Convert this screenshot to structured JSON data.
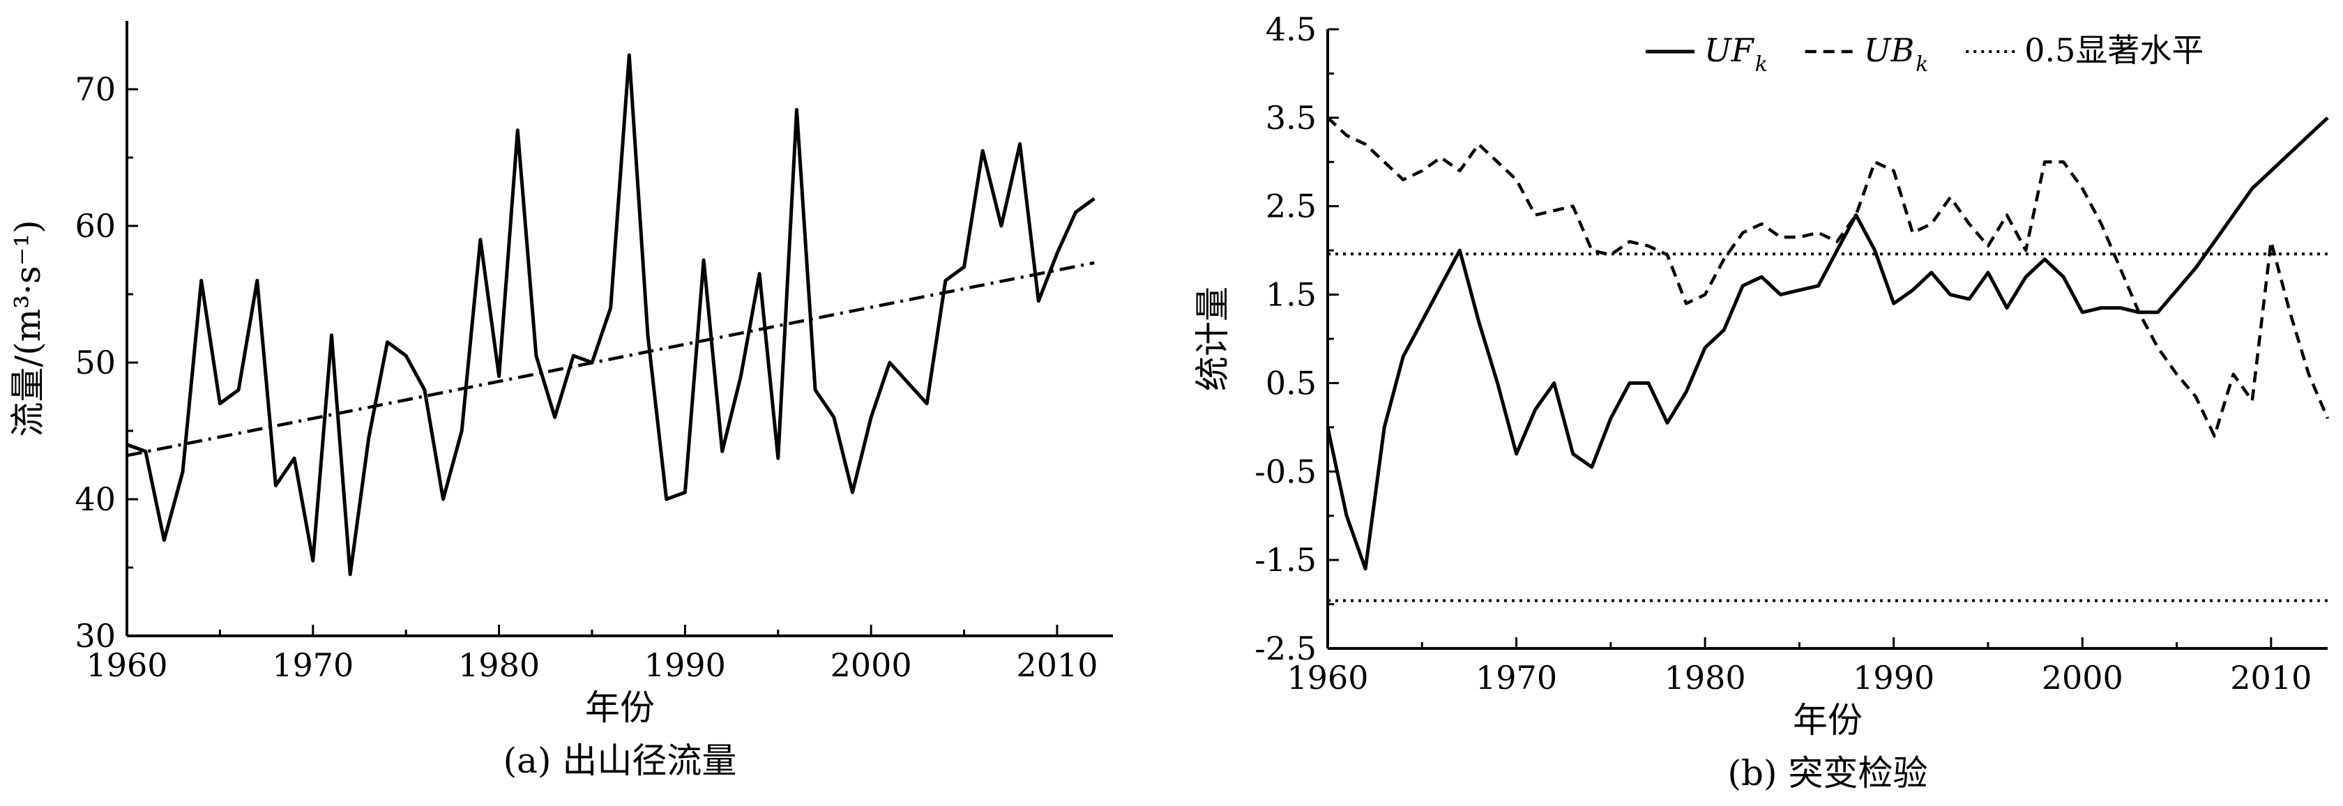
{
  "chart_data": [
    {
      "type": "line",
      "caption": "(a) 出山径流量",
      "xlabel": "年份",
      "ylabel": "流量/(m³·s⁻¹)",
      "xlim": [
        1960,
        2013
      ],
      "ylim": [
        30,
        75
      ],
      "xticks": [
        1960,
        1970,
        1980,
        1990,
        2000,
        2010
      ],
      "yticks": [
        30,
        40,
        50,
        60,
        70
      ],
      "grid": false,
      "series": [
        {
          "key": "flow",
          "style": "solid",
          "points": [
            [
              1960,
              44
            ],
            [
              1961,
              43.5
            ],
            [
              1962,
              37
            ],
            [
              1963,
              42
            ],
            [
              1964,
              56
            ],
            [
              1965,
              47
            ],
            [
              1966,
              48
            ],
            [
              1967,
              56
            ],
            [
              1968,
              41
            ],
            [
              1969,
              43
            ],
            [
              1970,
              35.5
            ],
            [
              1971,
              52
            ],
            [
              1972,
              34.5
            ],
            [
              1973,
              44.5
            ],
            [
              1974,
              51.5
            ],
            [
              1975,
              50.5
            ],
            [
              1976,
              48
            ],
            [
              1977,
              40
            ],
            [
              1978,
              45
            ],
            [
              1979,
              59
            ],
            [
              1980,
              49
            ],
            [
              1981,
              67
            ],
            [
              1982,
              50.5
            ],
            [
              1983,
              46
            ],
            [
              1984,
              50.5
            ],
            [
              1985,
              50
            ],
            [
              1986,
              54
            ],
            [
              1987,
              72.5
            ],
            [
              1988,
              52
            ],
            [
              1989,
              40
            ],
            [
              1990,
              40.5
            ],
            [
              1991,
              57.5
            ],
            [
              1992,
              43.5
            ],
            [
              1993,
              49
            ],
            [
              1994,
              56.5
            ],
            [
              1995,
              43
            ],
            [
              1996,
              68.5
            ],
            [
              1997,
              48
            ],
            [
              1998,
              46
            ],
            [
              1999,
              40.5
            ],
            [
              2000,
              46
            ],
            [
              2001,
              50
            ],
            [
              2002,
              48.5
            ],
            [
              2003,
              47
            ],
            [
              2004,
              56
            ],
            [
              2005,
              57
            ],
            [
              2006,
              65.5
            ],
            [
              2007,
              60
            ],
            [
              2008,
              66
            ],
            [
              2009,
              54.5
            ],
            [
              2010,
              58
            ],
            [
              2011,
              61
            ],
            [
              2012,
              62
            ]
          ]
        },
        {
          "key": "trend",
          "style": "dashdot",
          "points": [
            [
              1960,
              43.2
            ],
            [
              2012,
              57.3
            ]
          ]
        }
      ]
    },
    {
      "type": "line",
      "caption": "(b) 突变检验",
      "xlabel": "年份",
      "ylabel": "统计量",
      "xlim": [
        1960,
        2013
      ],
      "ylim": [
        -2.5,
        4.5
      ],
      "xticks": [
        1960,
        1970,
        1980,
        1990,
        2000,
        2010
      ],
      "yticks": [
        -2.5,
        -1.5,
        -0.5,
        0.5,
        1.5,
        2.5,
        3.5,
        4.5
      ],
      "ytick_labels": [
        "-2.5",
        "-1.5",
        "-0.5",
        "0.5",
        "1.5",
        "2.5",
        "3.5",
        "4.5"
      ],
      "grid": false,
      "legend_position": "top-right",
      "legend": [
        {
          "main": "UF",
          "sub": "k",
          "style": "solid"
        },
        {
          "main": "UB",
          "sub": "k",
          "style": "dashed"
        },
        {
          "main": "0.5显著水平",
          "sub": "",
          "style": "dotted"
        }
      ],
      "series": [
        {
          "key": "UF",
          "style": "solid",
          "points": [
            [
              1960,
              0
            ],
            [
              1961,
              -1
            ],
            [
              1962,
              -1.6
            ],
            [
              1963,
              0
            ],
            [
              1964,
              0.8
            ],
            [
              1965,
              1.2
            ],
            [
              1966,
              1.6
            ],
            [
              1967,
              2.0
            ],
            [
              1968,
              1.2
            ],
            [
              1969,
              0.5
            ],
            [
              1970,
              -0.3
            ],
            [
              1971,
              0.2
            ],
            [
              1972,
              0.5
            ],
            [
              1973,
              -0.3
            ],
            [
              1974,
              -0.45
            ],
            [
              1975,
              0.1
            ],
            [
              1976,
              0.5
            ],
            [
              1977,
              0.5
            ],
            [
              1978,
              0.05
            ],
            [
              1979,
              0.4
            ],
            [
              1980,
              0.9
            ],
            [
              1981,
              1.1
            ],
            [
              1982,
              1.6
            ],
            [
              1983,
              1.7
            ],
            [
              1984,
              1.5
            ],
            [
              1985,
              1.55
            ],
            [
              1986,
              1.6
            ],
            [
              1987,
              2.0
            ],
            [
              1988,
              2.4
            ],
            [
              1989,
              2.0
            ],
            [
              1990,
              1.4
            ],
            [
              1991,
              1.55
            ],
            [
              1992,
              1.75
            ],
            [
              1993,
              1.5
            ],
            [
              1994,
              1.45
            ],
            [
              1995,
              1.75
            ],
            [
              1996,
              1.35
            ],
            [
              1997,
              1.7
            ],
            [
              1998,
              1.9
            ],
            [
              1999,
              1.7
            ],
            [
              2000,
              1.3
            ],
            [
              2001,
              1.35
            ],
            [
              2002,
              1.35
            ],
            [
              2003,
              1.3
            ],
            [
              2004,
              1.3
            ],
            [
              2005,
              1.55
            ],
            [
              2006,
              1.8
            ],
            [
              2007,
              2.1
            ],
            [
              2008,
              2.4
            ],
            [
              2009,
              2.7
            ],
            [
              2010,
              2.9
            ],
            [
              2011,
              3.1
            ],
            [
              2012,
              3.3
            ],
            [
              2013,
              3.5
            ]
          ]
        },
        {
          "key": "UB",
          "style": "dashed",
          "points": [
            [
              1960,
              3.5
            ],
            [
              1961,
              3.3
            ],
            [
              1962,
              3.2
            ],
            [
              1963,
              3.0
            ],
            [
              1964,
              2.8
            ],
            [
              1965,
              2.9
            ],
            [
              1966,
              3.05
            ],
            [
              1967,
              2.9
            ],
            [
              1968,
              3.2
            ],
            [
              1969,
              3.0
            ],
            [
              1970,
              2.8
            ],
            [
              1971,
              2.4
            ],
            [
              1972,
              2.45
            ],
            [
              1973,
              2.5
            ],
            [
              1974,
              2.0
            ],
            [
              1975,
              1.95
            ],
            [
              1976,
              2.1
            ],
            [
              1977,
              2.05
            ],
            [
              1978,
              1.95
            ],
            [
              1979,
              1.4
            ],
            [
              1980,
              1.5
            ],
            [
              1981,
              1.9
            ],
            [
              1982,
              2.2
            ],
            [
              1983,
              2.3
            ],
            [
              1984,
              2.15
            ],
            [
              1985,
              2.15
            ],
            [
              1986,
              2.2
            ],
            [
              1987,
              2.1
            ],
            [
              1988,
              2.4
            ],
            [
              1989,
              3.0
            ],
            [
              1990,
              2.9
            ],
            [
              1991,
              2.2
            ],
            [
              1992,
              2.3
            ],
            [
              1993,
              2.6
            ],
            [
              1994,
              2.3
            ],
            [
              1995,
              2.05
            ],
            [
              1996,
              2.4
            ],
            [
              1997,
              2.0
            ],
            [
              1998,
              3.0
            ],
            [
              1999,
              3.0
            ],
            [
              2000,
              2.7
            ],
            [
              2001,
              2.3
            ],
            [
              2002,
              1.8
            ],
            [
              2003,
              1.3
            ],
            [
              2004,
              0.9
            ],
            [
              2005,
              0.6
            ],
            [
              2006,
              0.35
            ],
            [
              2007,
              -0.1
            ],
            [
              2008,
              0.6
            ],
            [
              2009,
              0.3
            ],
            [
              2010,
              2.1
            ],
            [
              2011,
              1.3
            ],
            [
              2012,
              0.6
            ],
            [
              2013,
              0.1
            ]
          ]
        },
        {
          "key": "sig_upper",
          "style": "dotted",
          "points": [
            [
              1960,
              1.96
            ],
            [
              2013,
              1.96
            ]
          ]
        },
        {
          "key": "sig_lower",
          "style": "dotted",
          "points": [
            [
              1960,
              -1.96
            ],
            [
              2013,
              -1.96
            ]
          ]
        }
      ]
    }
  ]
}
